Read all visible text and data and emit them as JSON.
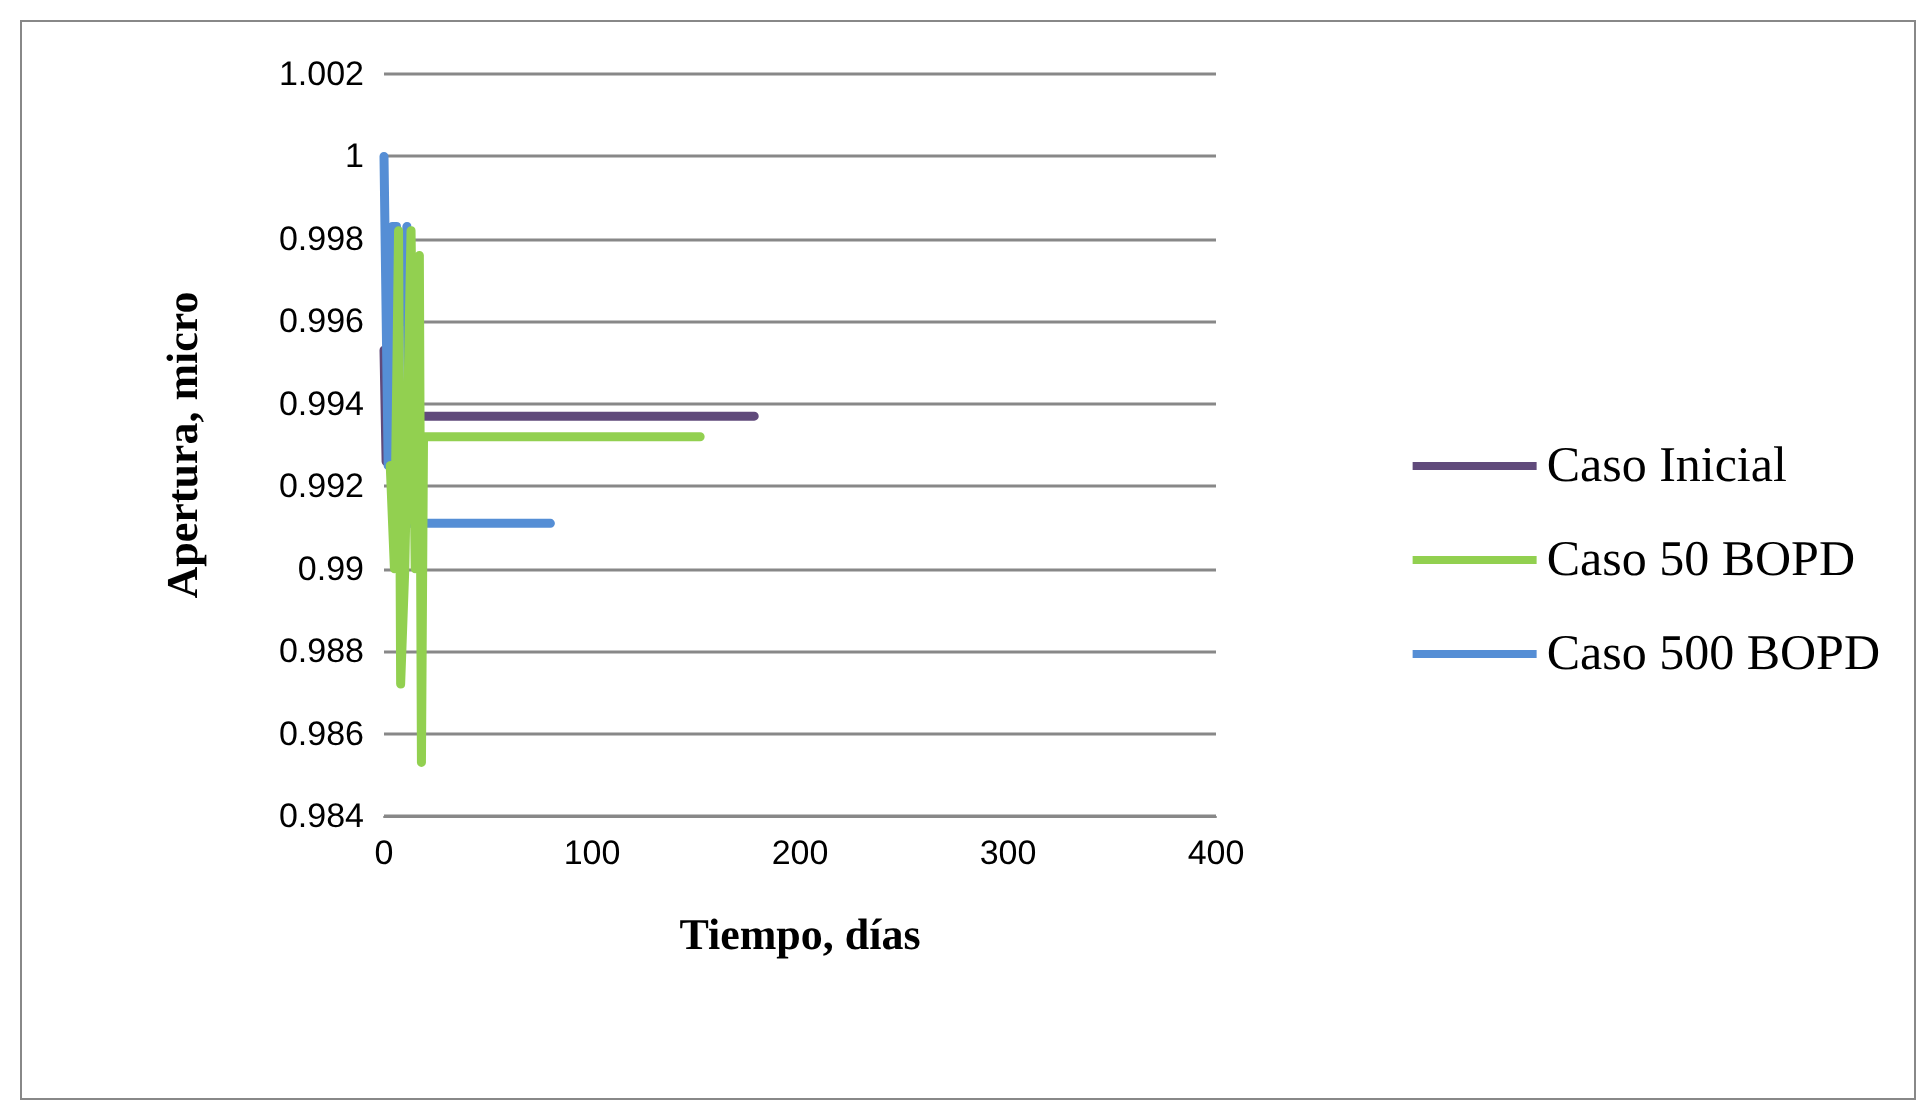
{
  "chart_data": {
    "type": "line",
    "xlabel": "Tiempo, días",
    "ylabel": "Apertura, micro",
    "xlim": [
      0,
      400
    ],
    "xticks": [
      0,
      100,
      200,
      300,
      400
    ],
    "ylim": [
      0.984,
      1.002
    ],
    "yticks": [
      0.984,
      0.986,
      0.988,
      0.99,
      0.992,
      0.994,
      0.996,
      0.998,
      1,
      1.002
    ],
    "grid": "y",
    "legend": "right",
    "marker": "none",
    "line_style": "solid",
    "series": [
      {
        "name": "Caso Inicial",
        "color": "#604a7b",
        "x": [
          0,
          1,
          2,
          5,
          178
        ],
        "values": [
          0.9953,
          0.9926,
          0.9937,
          0.9937,
          0.9937
        ]
      },
      {
        "name": "Caso 50 BOPD",
        "color": "#92d050",
        "x": [
          3,
          5,
          7,
          8,
          10,
          13,
          15,
          17,
          18,
          19,
          152
        ],
        "values": [
          0.9925,
          0.99,
          0.9982,
          0.9872,
          0.99,
          0.9982,
          0.99,
          0.9976,
          0.9853,
          0.9932,
          0.9932
        ]
      },
      {
        "name": "Caso 500 BOPD",
        "color": "#558ed5",
        "x": [
          0,
          2,
          4,
          6,
          9,
          11,
          12,
          80
        ],
        "values": [
          1,
          0.9925,
          0.9983,
          0.9983,
          0.996,
          0.9983,
          0.9911,
          0.9911
        ]
      }
    ]
  }
}
